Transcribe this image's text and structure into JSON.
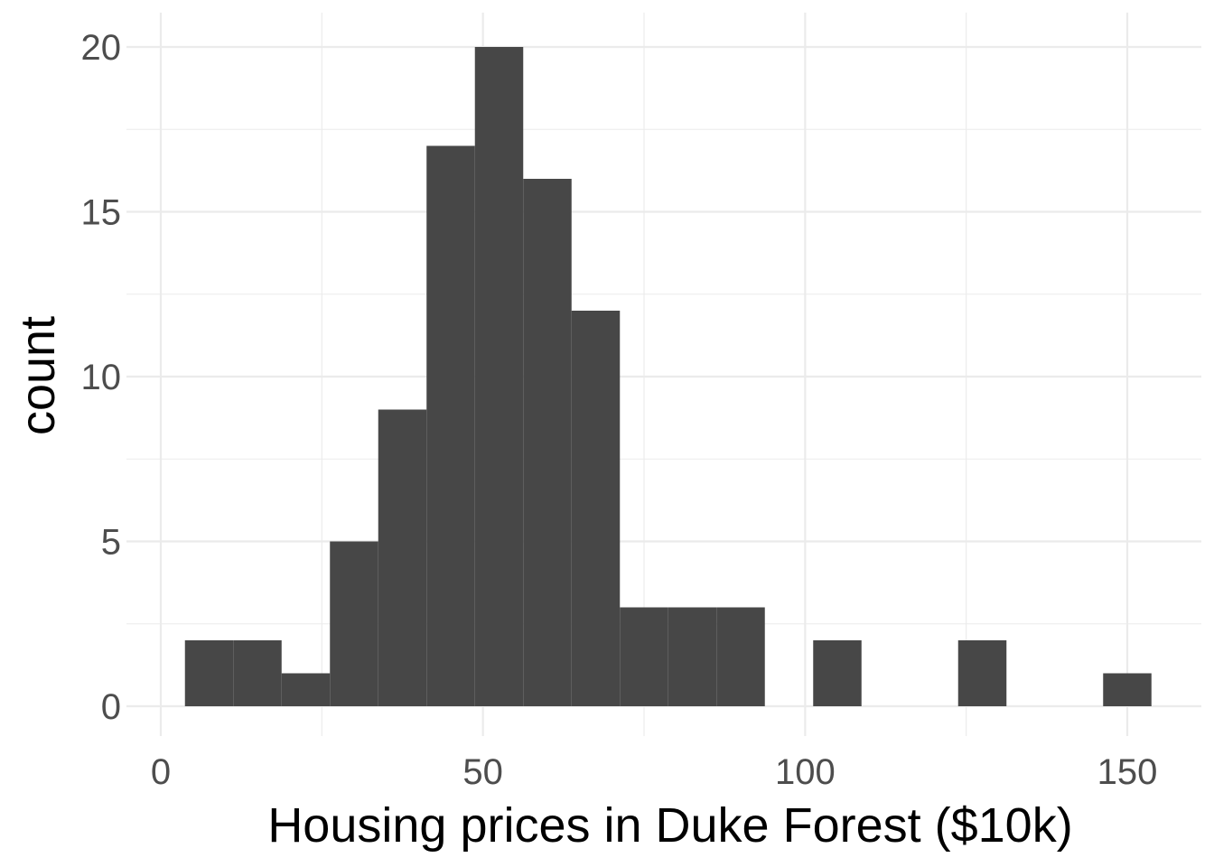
{
  "chart_data": {
    "type": "bar",
    "title": "",
    "xlabel": "Housing prices in Duke Forest ($10k)",
    "ylabel": "count",
    "xlim": [
      0,
      160
    ],
    "ylim": [
      0,
      20
    ],
    "x_ticks": [
      0,
      50,
      100,
      150
    ],
    "y_ticks": [
      0,
      5,
      10,
      15,
      20
    ],
    "grid": true,
    "bin_width": 7.5,
    "bins": [
      {
        "x0": 3.75,
        "x1": 11.25,
        "count": 2
      },
      {
        "x0": 11.25,
        "x1": 18.75,
        "count": 2
      },
      {
        "x0": 18.75,
        "x1": 26.25,
        "count": 1
      },
      {
        "x0": 26.25,
        "x1": 33.75,
        "count": 5
      },
      {
        "x0": 33.75,
        "x1": 41.25,
        "count": 9
      },
      {
        "x0": 41.25,
        "x1": 48.75,
        "count": 17
      },
      {
        "x0": 48.75,
        "x1": 56.25,
        "count": 20
      },
      {
        "x0": 56.25,
        "x1": 63.75,
        "count": 16
      },
      {
        "x0": 63.75,
        "x1": 71.25,
        "count": 12
      },
      {
        "x0": 71.25,
        "x1": 78.75,
        "count": 3
      },
      {
        "x0": 78.75,
        "x1": 86.25,
        "count": 3
      },
      {
        "x0": 86.25,
        "x1": 93.75,
        "count": 3
      },
      {
        "x0": 93.75,
        "x1": 101.25,
        "count": 0
      },
      {
        "x0": 101.25,
        "x1": 108.75,
        "count": 2
      },
      {
        "x0": 108.75,
        "x1": 116.25,
        "count": 0
      },
      {
        "x0": 116.25,
        "x1": 123.75,
        "count": 0
      },
      {
        "x0": 123.75,
        "x1": 131.25,
        "count": 2
      },
      {
        "x0": 131.25,
        "x1": 138.75,
        "count": 0
      },
      {
        "x0": 138.75,
        "x1": 146.25,
        "count": 0
      },
      {
        "x0": 146.25,
        "x1": 153.75,
        "count": 1
      }
    ]
  }
}
